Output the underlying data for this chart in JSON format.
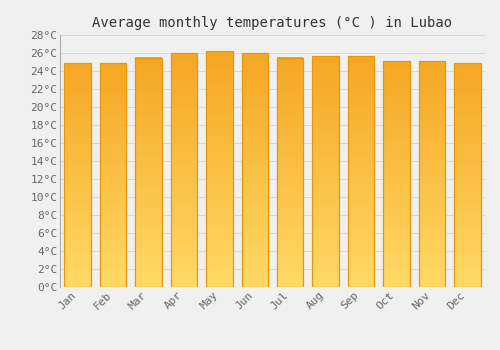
{
  "title": "Average monthly temperatures (°C ) in Lubao",
  "months": [
    "Jan",
    "Feb",
    "Mar",
    "Apr",
    "May",
    "Jun",
    "Jul",
    "Aug",
    "Sep",
    "Oct",
    "Nov",
    "Dec"
  ],
  "values": [
    24.9,
    24.9,
    25.5,
    26.0,
    26.2,
    26.0,
    25.5,
    25.7,
    25.7,
    25.1,
    25.1,
    24.9
  ],
  "ylim": [
    0,
    28
  ],
  "yticks": [
    0,
    2,
    4,
    6,
    8,
    10,
    12,
    14,
    16,
    18,
    20,
    22,
    24,
    26,
    28
  ],
  "bar_color_top": "#F5A623",
  "bar_color_bottom": "#FFD966",
  "bar_edge_color": "#E8960A",
  "background_color": "#F0F0F0",
  "grid_color": "#D8D8D8",
  "title_fontsize": 10,
  "tick_fontsize": 8,
  "title_font": "monospace",
  "tick_font": "monospace"
}
